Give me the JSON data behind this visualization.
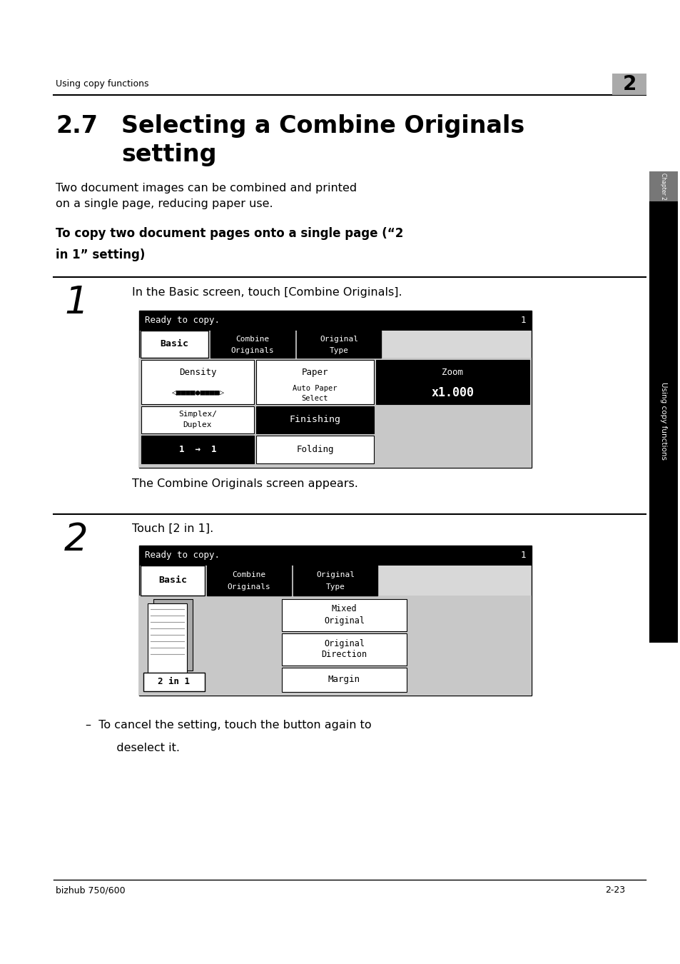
{
  "bg_color": "#ffffff",
  "header_text": "Using copy functions",
  "header_chapter": "2",
  "title_number": "2.7",
  "title_line1": "Selecting a Combine Originals",
  "title_line2": "setting",
  "body_text1": "Two document images can be combined and printed\non a single page, reducing paper use.",
  "subhead_line1": "To copy two document pages onto a single page (“2",
  "subhead_line2": "in 1” setting)",
  "step1_num": "1",
  "step1_text": "In the Basic screen, touch [Combine Originals].",
  "caption1": "The Combine Originals screen appears.",
  "step2_num": "2",
  "step2_text": "Touch [2 in 1].",
  "bullet_line1": "–  To cancel the setting, touch the button again to",
  "bullet_line2": "   deselect it.",
  "footer_left": "bizhub 750/600",
  "footer_right": "2-23",
  "sidebar_text": "Using copy functions",
  "chapter_tab_text": "Chapter 2"
}
